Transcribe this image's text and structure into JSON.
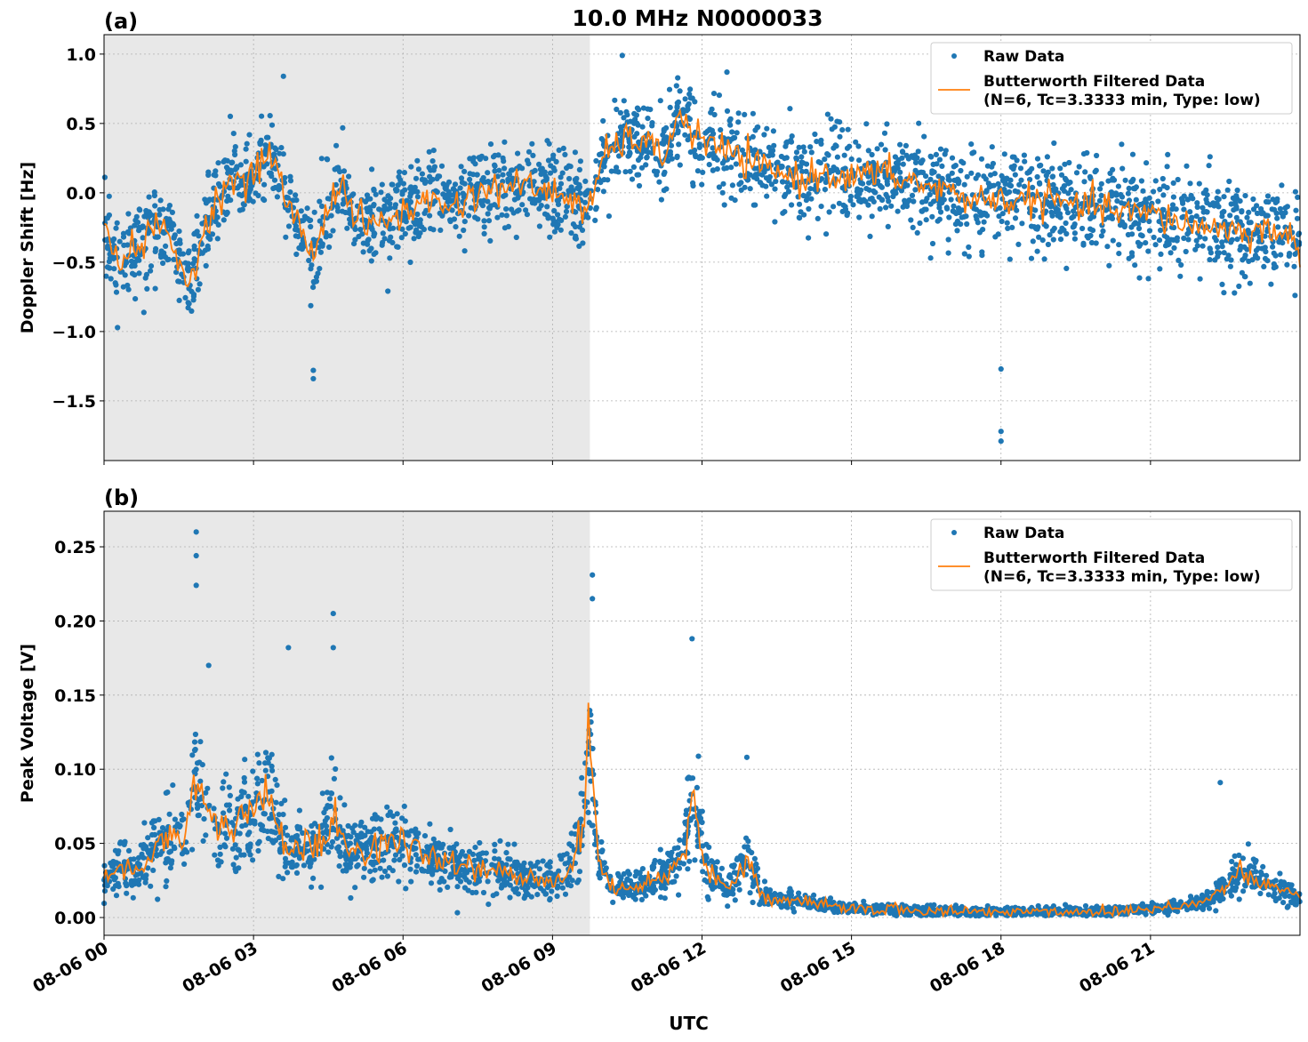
{
  "figure": {
    "title": "10.0 MHz N0000033",
    "xlabel": "UTC"
  },
  "colors": {
    "raw": "#1f77b4",
    "filtered": "#ff7f0e",
    "shade": "#e8e8e8",
    "grid": "#b0b0b0"
  },
  "chart_data": [
    {
      "type": "scatter",
      "panel_label": "(a)",
      "ylabel": "Doppler Shift [Hz]",
      "xlim": [
        "08-06 00:00",
        "08-06 24:00"
      ],
      "ylim": [
        -1.93,
        1.14
      ],
      "yticks": [
        1.0,
        0.5,
        0.0,
        -0.5,
        -1.0,
        -1.5
      ],
      "ytick_labels": [
        "1.0",
        "0.5",
        "0.0",
        "−0.5",
        "−1.0",
        "−1.5"
      ],
      "grid": true,
      "legend_placement": "top-right",
      "shaded_interval": [
        "08-06 00:00",
        "08-06 09:45"
      ],
      "series": [
        {
          "name": "Raw Data",
          "kind": "points"
        },
        {
          "name": "Butterworth Filtered Data",
          "name_line2": "(N=6, Tc=3.3333 min, Type: low)",
          "kind": "line"
        }
      ],
      "trend_hours": [
        0,
        0.3,
        0.7,
        1.0,
        1.3,
        1.5,
        1.65,
        1.8,
        2.0,
        2.3,
        2.6,
        2.9,
        3.1,
        3.3,
        3.5,
        3.7,
        4.0,
        4.2,
        4.4,
        4.6,
        4.8,
        5.0,
        5.3,
        5.6,
        6.0,
        6.5,
        7.0,
        7.5,
        8.0,
        8.5,
        9.0,
        9.5,
        9.7,
        10.0,
        10.3,
        10.6,
        10.9,
        11.2,
        11.5,
        11.8,
        12.1,
        12.5,
        13.0,
        13.5,
        14.0,
        14.5,
        15.0,
        15.5,
        16.0,
        16.5,
        17.0,
        17.5,
        18.0,
        18.5,
        19.0,
        19.5,
        20.0,
        20.5,
        21.0,
        21.5,
        22.0,
        22.5,
        23.0,
        23.5,
        24.0
      ],
      "trend_values": [
        -0.3,
        -0.45,
        -0.4,
        -0.25,
        -0.3,
        -0.5,
        -0.7,
        -0.5,
        -0.3,
        0.0,
        0.1,
        0.05,
        0.2,
        0.3,
        0.15,
        -0.1,
        -0.3,
        -0.45,
        -0.2,
        0.0,
        0.05,
        -0.15,
        -0.25,
        -0.2,
        -0.15,
        -0.05,
        -0.1,
        0.0,
        0.05,
        0.05,
        0.0,
        -0.05,
        -0.2,
        0.25,
        0.35,
        0.4,
        0.35,
        0.25,
        0.55,
        0.45,
        0.35,
        0.3,
        0.2,
        0.15,
        0.1,
        0.15,
        0.1,
        0.15,
        0.1,
        0.05,
        0.0,
        -0.05,
        -0.05,
        -0.05,
        -0.05,
        -0.1,
        -0.1,
        -0.15,
        -0.15,
        -0.2,
        -0.25,
        -0.25,
        -0.3,
        -0.25,
        -0.4
      ],
      "point_spread": 0.28,
      "outliers": [
        {
          "x": 18.0,
          "y": -1.27
        },
        {
          "x": 18.0,
          "y": -1.72
        },
        {
          "x": 18.0,
          "y": -1.79
        },
        {
          "x": 4.2,
          "y": -1.34
        },
        {
          "x": 4.2,
          "y": -1.28
        },
        {
          "x": 3.6,
          "y": 0.84
        },
        {
          "x": 10.4,
          "y": 0.99
        },
        {
          "x": 12.5,
          "y": 0.87
        }
      ]
    },
    {
      "type": "scatter",
      "panel_label": "(b)",
      "ylabel": "Peak Voltage [V]",
      "xlim": [
        "08-06 00:00",
        "08-06 24:00"
      ],
      "ylim": [
        -0.012,
        0.274
      ],
      "yticks": [
        0.25,
        0.2,
        0.15,
        0.1,
        0.05,
        0.0
      ],
      "ytick_labels": [
        "0.25",
        "0.20",
        "0.15",
        "0.10",
        "0.05",
        "0.00"
      ],
      "xticks": [
        0,
        3,
        6,
        9,
        12,
        15,
        18,
        21
      ],
      "xtick_labels": [
        "08-06 00",
        "08-06 03",
        "08-06 06",
        "08-06 09",
        "08-06 12",
        "08-06 15",
        "08-06 18",
        "08-06 21"
      ],
      "grid": true,
      "legend_placement": "top-right",
      "shaded_interval": [
        "08-06 00:00",
        "08-06 09:45"
      ],
      "series": [
        {
          "name": "Raw Data",
          "kind": "points"
        },
        {
          "name": "Butterworth Filtered Data",
          "name_line2": "(N=6, Tc=3.3333 min, Type: low)",
          "kind": "line"
        }
      ],
      "trend_hours": [
        0,
        0.3,
        0.6,
        1.0,
        1.3,
        1.6,
        1.8,
        2.0,
        2.3,
        2.6,
        3.0,
        3.3,
        3.6,
        4.0,
        4.3,
        4.6,
        4.9,
        5.2,
        5.6,
        6.0,
        6.5,
        7.0,
        7.5,
        8.0,
        8.5,
        9.0,
        9.3,
        9.6,
        9.75,
        9.9,
        10.2,
        10.6,
        11.0,
        11.3,
        11.6,
        11.85,
        12.1,
        12.5,
        12.9,
        13.2,
        13.5,
        14.0,
        14.5,
        15.0,
        15.5,
        16.0,
        17.0,
        18.0,
        19.0,
        20.0,
        21.0,
        21.5,
        22.0,
        22.5,
        22.8,
        23.1,
        23.5,
        24.0
      ],
      "trend_values": [
        0.025,
        0.035,
        0.03,
        0.045,
        0.06,
        0.05,
        0.09,
        0.07,
        0.06,
        0.065,
        0.07,
        0.085,
        0.05,
        0.045,
        0.05,
        0.07,
        0.045,
        0.045,
        0.05,
        0.05,
        0.04,
        0.035,
        0.035,
        0.03,
        0.025,
        0.025,
        0.03,
        0.06,
        0.12,
        0.04,
        0.02,
        0.02,
        0.025,
        0.03,
        0.04,
        0.085,
        0.03,
        0.02,
        0.04,
        0.015,
        0.012,
        0.01,
        0.008,
        0.006,
        0.006,
        0.005,
        0.004,
        0.004,
        0.004,
        0.004,
        0.006,
        0.008,
        0.01,
        0.02,
        0.03,
        0.025,
        0.02,
        0.015
      ],
      "spread_factor": 0.45,
      "outliers": [
        {
          "x": 1.85,
          "y": 0.26
        },
        {
          "x": 1.85,
          "y": 0.244
        },
        {
          "x": 1.85,
          "y": 0.224
        },
        {
          "x": 4.6,
          "y": 0.205
        },
        {
          "x": 4.6,
          "y": 0.182
        },
        {
          "x": 9.8,
          "y": 0.231
        },
        {
          "x": 9.8,
          "y": 0.215
        },
        {
          "x": 11.8,
          "y": 0.188
        },
        {
          "x": 3.7,
          "y": 0.182
        },
        {
          "x": 2.1,
          "y": 0.17
        },
        {
          "x": 12.9,
          "y": 0.108
        },
        {
          "x": 22.4,
          "y": 0.091
        }
      ]
    }
  ]
}
